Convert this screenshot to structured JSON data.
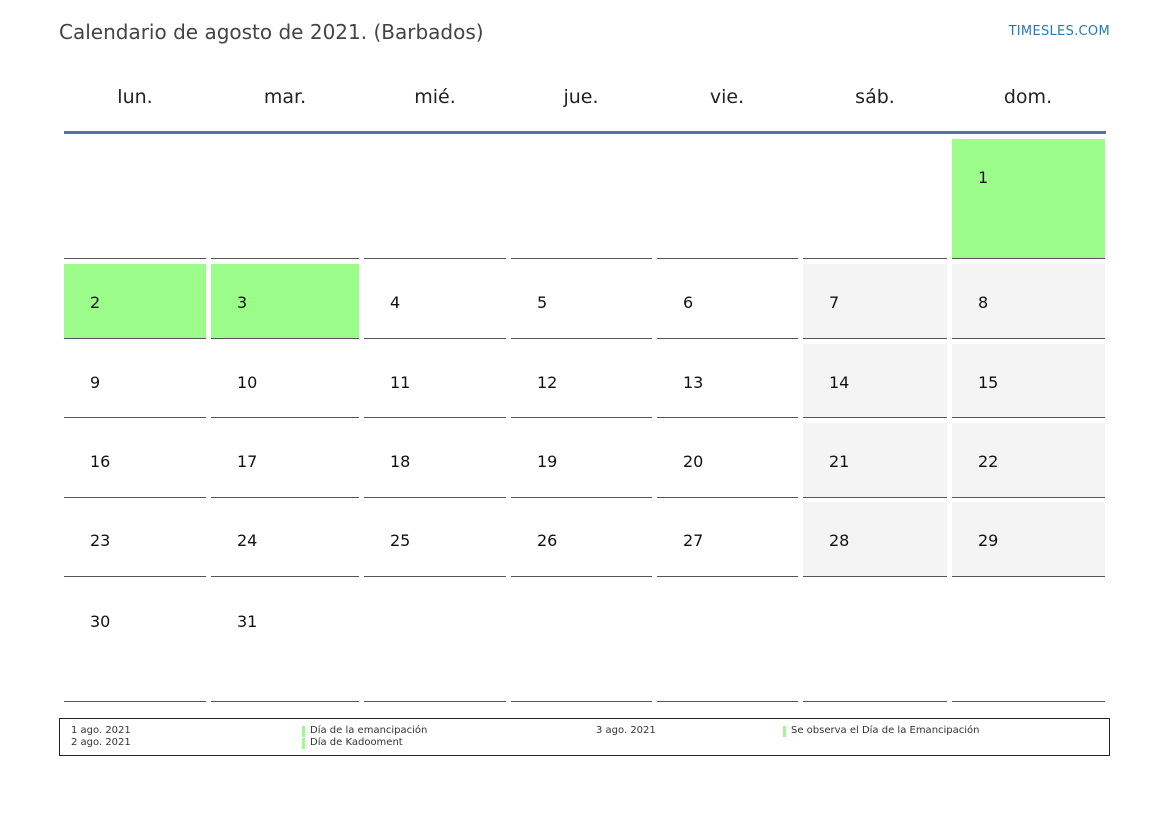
{
  "title": "Calendario de agosto de 2021. (Barbados)",
  "site": "TIMESLES.COM",
  "colors": {
    "holiday": "#9bfc8a",
    "weekend": "#f4f4f4",
    "header_rule": "#5b7096",
    "link": "#2a77b8"
  },
  "weekdays": [
    "lun.",
    "mar.",
    "mié.",
    "jue.",
    "vie.",
    "sáb.",
    "dom."
  ],
  "weeks": [
    [
      "",
      "",
      "",
      "",
      "",
      "",
      "1"
    ],
    [
      "2",
      "3",
      "4",
      "5",
      "6",
      "7",
      "8"
    ],
    [
      "9",
      "10",
      "11",
      "12",
      "13",
      "14",
      "15"
    ],
    [
      "16",
      "17",
      "18",
      "19",
      "20",
      "21",
      "22"
    ],
    [
      "23",
      "24",
      "25",
      "26",
      "27",
      "28",
      "29"
    ],
    [
      "30",
      "31",
      "",
      "",
      "",
      "",
      ""
    ]
  ],
  "holidays": [
    "1",
    "2",
    "3"
  ],
  "legend": [
    {
      "date": "1 ago. 2021",
      "name": "Día de la emancipación"
    },
    {
      "date": "2 ago. 2021",
      "name": "Día de Kadooment"
    },
    {
      "date": "3 ago. 2021",
      "name": "Se observa el Día de la Emancipación"
    }
  ]
}
